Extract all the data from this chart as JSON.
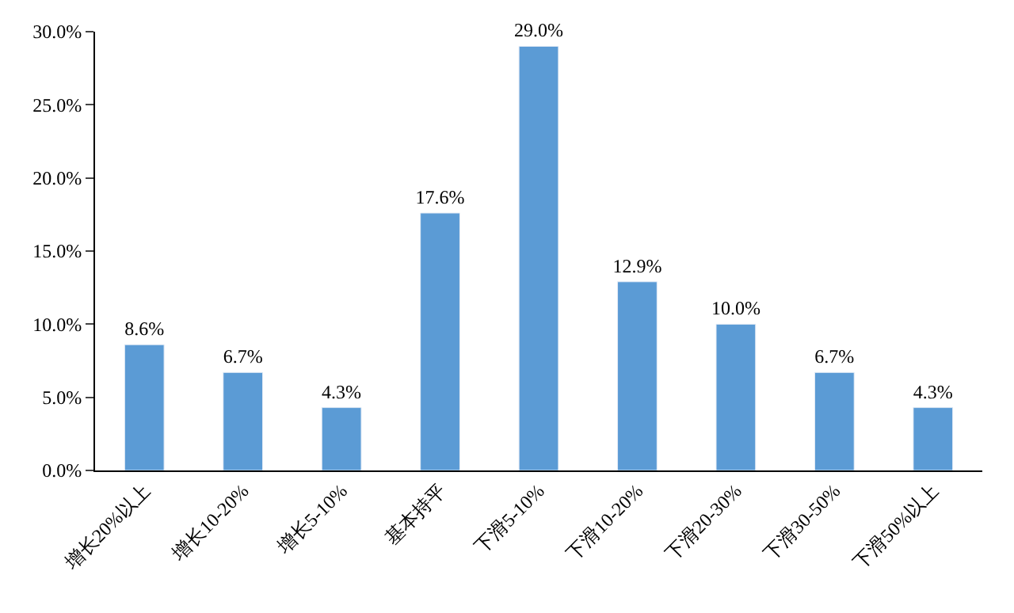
{
  "chart_data": {
    "type": "bar",
    "categories": [
      "增长20%以上",
      "增长10-20%",
      "增长5-10%",
      "基本持平",
      "下滑5-10%",
      "下滑10-20%",
      "下滑20-30%",
      "下滑30-50%",
      "下滑50%以上"
    ],
    "values": [
      8.6,
      6.7,
      4.3,
      17.6,
      29.0,
      12.9,
      10.0,
      6.7,
      4.3
    ],
    "value_labels": [
      "8.6%",
      "6.7%",
      "4.3%",
      "17.6%",
      "29.0%",
      "12.9%",
      "10.0%",
      "6.7%",
      "4.3%"
    ],
    "color": "#5b9bd5",
    "ylim": [
      0,
      30
    ],
    "yticks": [
      {
        "value": 0,
        "label": "0.0%"
      },
      {
        "value": 5,
        "label": "5.0%"
      },
      {
        "value": 10,
        "label": "10.0%"
      },
      {
        "value": 15,
        "label": "15.0%"
      },
      {
        "value": 20,
        "label": "20.0%"
      },
      {
        "value": 25,
        "label": "25.0%"
      },
      {
        "value": 30,
        "label": "30.0%"
      }
    ],
    "legend": false
  }
}
